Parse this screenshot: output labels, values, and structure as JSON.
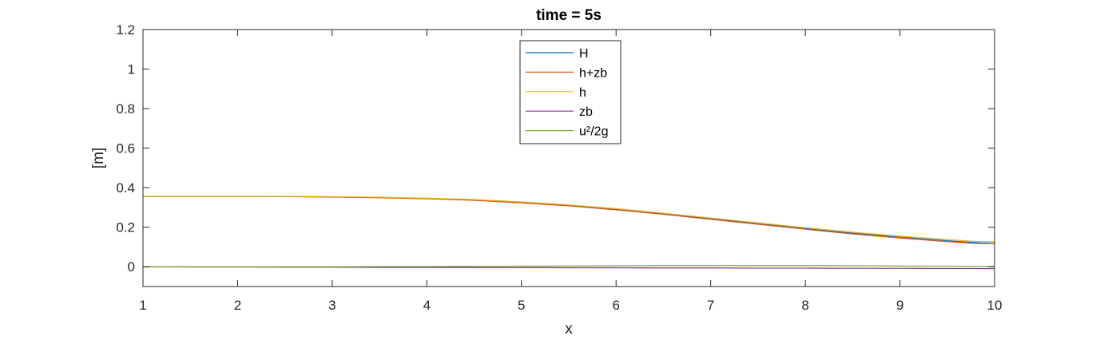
{
  "chart_data": {
    "type": "line",
    "title": "time = 5s",
    "xlabel": "x",
    "ylabel": "[m]",
    "xlim": [
      1,
      10
    ],
    "ylim": [
      -0.1,
      1.2
    ],
    "xticks": [
      1,
      2,
      3,
      4,
      5,
      6,
      7,
      8,
      9,
      10
    ],
    "yticks": [
      0,
      0.2,
      0.4,
      0.6,
      0.8,
      1,
      1.2
    ],
    "yticklabels": [
      "0",
      "0.2",
      "0.4",
      "0.6",
      "0.8",
      "1",
      "1.2"
    ],
    "grid": false,
    "legend_position": "top-center",
    "x": [
      1,
      1.5,
      2,
      2.5,
      3,
      3.5,
      4,
      4.5,
      5,
      5.5,
      6,
      6.5,
      7,
      7.5,
      8,
      8.5,
      9,
      9.5,
      9.8,
      10
    ],
    "series": [
      {
        "name": "H",
        "color": "#0072BD",
        "values": [
          0.355,
          0.356,
          0.356,
          0.355,
          0.353,
          0.35,
          0.345,
          0.337,
          0.325,
          0.31,
          0.29,
          0.267,
          0.243,
          0.218,
          0.193,
          0.17,
          0.15,
          0.132,
          0.122,
          0.118
        ]
      },
      {
        "name": "h+zb",
        "color": "#D95319",
        "values": [
          0.355,
          0.356,
          0.356,
          0.355,
          0.353,
          0.349,
          0.344,
          0.336,
          0.323,
          0.308,
          0.288,
          0.265,
          0.24,
          0.215,
          0.19,
          0.166,
          0.145,
          0.127,
          0.118,
          0.117
        ]
      },
      {
        "name": "h",
        "color": "#EDB120",
        "values": [
          0.356,
          0.357,
          0.357,
          0.356,
          0.355,
          0.352,
          0.347,
          0.34,
          0.328,
          0.313,
          0.294,
          0.271,
          0.247,
          0.222,
          0.198,
          0.175,
          0.155,
          0.138,
          0.128,
          0.127
        ]
      },
      {
        "name": "zb",
        "color": "#7E2F8E",
        "values": [
          0.0,
          -0.001,
          -0.001,
          -0.002,
          -0.002,
          -0.003,
          -0.003,
          -0.004,
          -0.004,
          -0.005,
          -0.005,
          -0.006,
          -0.006,
          -0.007,
          -0.007,
          -0.008,
          -0.008,
          -0.009,
          -0.009,
          -0.01
        ]
      },
      {
        "name": "u²/2g",
        "color": "#77AC30",
        "values": [
          0.0,
          0.0,
          0.0,
          0.0,
          0.0,
          0.001,
          0.001,
          0.002,
          0.003,
          0.004,
          0.005,
          0.006,
          0.006,
          0.006,
          0.006,
          0.005,
          0.004,
          0.003,
          0.002,
          0.001
        ]
      }
    ]
  }
}
